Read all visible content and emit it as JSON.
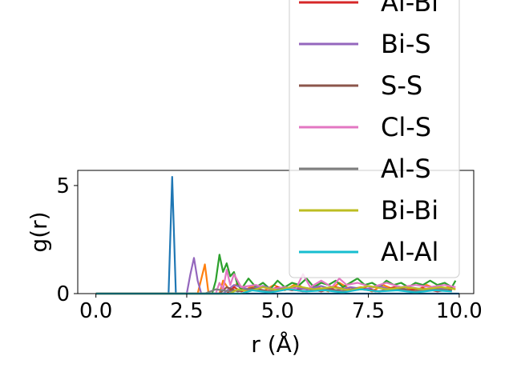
{
  "chart_data": {
    "type": "line",
    "xlabel": "r (Å)",
    "ylabel": "g(r)",
    "xlim": [
      -0.5,
      10.4
    ],
    "ylim": [
      0,
      5.7
    ],
    "xticks": [
      0.0,
      2.5,
      5.0,
      7.5,
      10.0
    ],
    "xtick_labels": [
      "0.0",
      "2.5",
      "5.0",
      "7.5",
      "10.0"
    ],
    "yticks": [
      0,
      5
    ],
    "ytick_labels": [
      "0",
      "5"
    ],
    "grid": false,
    "legend_position": "top-right",
    "series": [
      {
        "color": "#1f77b4",
        "x": [
          0.0,
          2.0,
          2.1,
          2.2,
          2.3,
          10.0
        ],
        "y": [
          0,
          0,
          5.4,
          0,
          0,
          0
        ]
      },
      {
        "color": "#ff7f0e",
        "x": [
          0.0,
          2.8,
          3.0,
          3.1,
          3.4,
          3.5,
          3.7,
          3.9,
          4.1,
          4.3,
          4.6,
          4.9,
          5.2,
          5.5,
          5.8,
          6.1,
          6.4,
          6.7,
          7.0,
          7.3,
          7.6,
          7.9,
          8.2,
          8.5,
          8.8,
          9.1,
          9.4,
          9.7,
          9.9
        ],
        "y": [
          0,
          0,
          1.35,
          0,
          0,
          0.6,
          0.1,
          0.5,
          0.15,
          0.35,
          0.1,
          0.4,
          0.15,
          0.45,
          0.2,
          0.3,
          0.1,
          0.5,
          0.2,
          0.3,
          0.1,
          0.4,
          0.2,
          0.3,
          0.1,
          0.4,
          0.2,
          0.3,
          0.2
        ]
      },
      {
        "color": "#2ca02c",
        "x": [
          0.0,
          3.2,
          3.3,
          3.4,
          3.5,
          3.6,
          3.7,
          3.8,
          3.9,
          4.0,
          4.2,
          4.4,
          4.6,
          4.8,
          5.0,
          5.2,
          5.4,
          5.6,
          5.8,
          6.0,
          6.2,
          6.4,
          6.6,
          6.8,
          7.0,
          7.2,
          7.4,
          7.6,
          7.8,
          8.0,
          8.2,
          8.4,
          8.6,
          8.8,
          9.0,
          9.2,
          9.4,
          9.6,
          9.8,
          9.9
        ],
        "y": [
          0,
          0,
          0.6,
          1.8,
          1.0,
          1.4,
          0.8,
          1.0,
          0.4,
          0.2,
          0.7,
          0.3,
          0.5,
          0.2,
          0.6,
          0.3,
          0.5,
          0.4,
          0.7,
          0.3,
          0.5,
          0.4,
          0.6,
          0.3,
          0.5,
          0.7,
          0.4,
          0.5,
          0.3,
          0.6,
          0.4,
          0.5,
          0.3,
          0.5,
          0.4,
          0.6,
          0.4,
          0.5,
          0.3,
          0.6
        ]
      },
      {
        "color": "#d62728",
        "x": [
          0.0,
          3.6,
          3.8,
          4.0,
          4.3,
          4.7,
          5.0,
          5.4,
          5.8,
          6.2,
          6.6,
          7.0,
          7.4,
          7.8,
          8.2,
          8.6,
          9.0,
          9.4,
          9.8
        ],
        "y": [
          0,
          0,
          0.3,
          0.1,
          0.25,
          0.1,
          0.3,
          0.15,
          0.25,
          0.1,
          0.3,
          0.15,
          0.25,
          0.1,
          0.3,
          0.15,
          0.25,
          0.1,
          0.2
        ]
      },
      {
        "color": "#9467bd",
        "x": [
          0.0,
          2.5,
          2.6,
          2.7,
          2.8,
          2.9,
          3.5,
          3.8,
          4.2,
          4.6,
          5.0,
          5.4,
          5.8,
          6.2,
          6.6,
          7.0,
          7.4,
          7.8,
          8.2,
          8.6,
          9.0,
          9.4,
          9.8
        ],
        "y": [
          0,
          0,
          0.9,
          1.65,
          0.6,
          0,
          0,
          0.4,
          0.2,
          0.35,
          0.15,
          0.3,
          0.2,
          0.35,
          0.15,
          0.3,
          0.2,
          0.35,
          0.15,
          0.3,
          0.2,
          0.25,
          0.2
        ]
      },
      {
        "color": "#8c564b",
        "x": [
          0.0,
          3.4,
          3.6,
          3.9,
          4.3,
          4.8,
          5.3,
          5.8,
          6.3,
          6.8,
          7.3,
          7.8,
          8.3,
          8.8,
          9.3,
          9.8
        ],
        "y": [
          0,
          0,
          0.3,
          0.1,
          0.25,
          0.1,
          0.2,
          0.1,
          0.25,
          0.1,
          0.2,
          0.1,
          0.25,
          0.1,
          0.2,
          0.15
        ]
      },
      {
        "color": "#e377c2",
        "x": [
          0.0,
          3.3,
          3.4,
          3.5,
          3.6,
          3.7,
          3.8,
          4.0,
          4.4,
          4.8,
          5.2,
          5.5,
          5.7,
          5.9,
          6.2,
          6.5,
          6.7,
          6.9,
          7.2,
          7.6,
          8.0,
          8.4,
          8.8,
          9.2,
          9.6,
          9.9
        ],
        "y": [
          0,
          0,
          0.5,
          0.2,
          1.1,
          0.4,
          0.9,
          0.3,
          0.4,
          0.2,
          0.3,
          0.2,
          0.9,
          0.3,
          0.6,
          0.3,
          0.7,
          0.4,
          0.5,
          0.3,
          0.5,
          0.3,
          0.4,
          0.3,
          0.4,
          0.3
        ]
      },
      {
        "color": "#7f7f7f",
        "x": [
          0.0,
          3.0,
          3.3,
          3.7,
          4.2,
          4.7,
          5.2,
          5.7,
          6.2,
          6.7,
          7.2,
          7.7,
          8.2,
          8.7,
          9.2,
          9.7
        ],
        "y": [
          0,
          0,
          0.2,
          0.1,
          0.2,
          0.1,
          0.25,
          0.1,
          0.2,
          0.1,
          0.25,
          0.1,
          0.2,
          0.1,
          0.2,
          0.15
        ]
      },
      {
        "color": "#bcbd22",
        "x": [
          0.0,
          3.7,
          3.9,
          4.2,
          4.6,
          5.0,
          5.5,
          6.0,
          6.5,
          7.0,
          7.5,
          8.0,
          8.5,
          9.0,
          9.5,
          9.9
        ],
        "y": [
          0,
          0,
          0.2,
          0.1,
          0.3,
          0.15,
          0.35,
          0.2,
          0.3,
          0.15,
          0.35,
          0.2,
          0.3,
          0.2,
          0.3,
          0.2
        ]
      },
      {
        "color": "#17becf",
        "x": [
          0.0,
          4.0,
          4.3,
          4.8,
          5.3,
          5.8,
          6.3,
          6.8,
          7.3,
          7.8,
          8.3,
          8.8,
          9.3,
          9.8
        ],
        "y": [
          0,
          0,
          0.15,
          0.05,
          0.2,
          0.1,
          0.15,
          0.05,
          0.2,
          0.1,
          0.15,
          0.05,
          0.15,
          0.1
        ]
      }
    ],
    "legend": {
      "entries": [
        {
          "label": "Al-Bi",
          "color": "#d62728"
        },
        {
          "label": "Bi-S",
          "color": "#9467bd"
        },
        {
          "label": "S-S",
          "color": "#8c564b"
        },
        {
          "label": "Cl-S",
          "color": "#e377c2"
        },
        {
          "label": "Al-S",
          "color": "#7f7f7f"
        },
        {
          "label": "Bi-Bi",
          "color": "#bcbd22"
        },
        {
          "label": "Al-Al",
          "color": "#17becf"
        }
      ]
    }
  }
}
